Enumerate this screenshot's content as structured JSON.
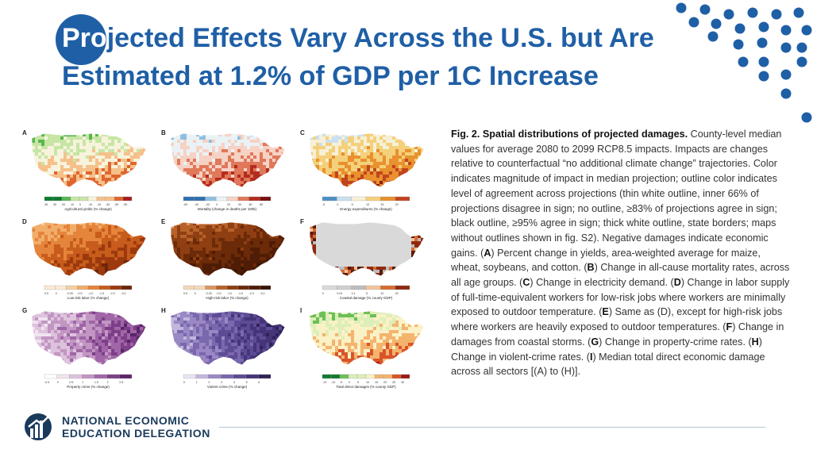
{
  "slide": {
    "title_highlight": "Pro",
    "title_rest": "jected Effects Vary Across the U.S. but Are Estimated at 1.2% of GDP per 1C Increase"
  },
  "figure": {
    "panels": [
      {
        "letter": "A",
        "label": "Agricultural yields (% change)",
        "ticks": [
          "45",
          "30",
          "20",
          "10",
          "0",
          "-10",
          "-20",
          "-30",
          "-50",
          "-90"
        ]
      },
      {
        "letter": "B",
        "label": "Mortality (change in deaths per 100k)",
        "ticks": [
          "-60",
          "-40",
          "-20",
          "0",
          "20",
          "40",
          "60",
          "80"
        ]
      },
      {
        "letter": "C",
        "label": "Energy expenditures (% change)",
        "ticks": [
          "-5",
          "0",
          "5",
          "10",
          "15",
          "20"
        ]
      },
      {
        "letter": "D",
        "label": "Low-risk labor (% change)",
        "ticks": [
          "0.5",
          "0",
          "-0.25",
          "-0.5",
          "-1.0",
          "-1.5",
          "-2.0",
          "-3.0"
        ]
      },
      {
        "letter": "E",
        "label": "High-risk labor (% change)",
        "ticks": [
          "0.5",
          "0",
          "-0.25",
          "-0.5",
          "-1.0",
          "-1.5",
          "-2.0",
          "-3.0"
        ]
      },
      {
        "letter": "F",
        "label": "Coastal damage (% county GDP)",
        "ticks": [
          "0",
          "0.01",
          "0.1",
          "5",
          "10",
          "20"
        ]
      },
      {
        "letter": "G",
        "label": "Property crime (% change)",
        "ticks": [
          "-0.5",
          "0",
          "0.5",
          "1",
          "1.5",
          "2",
          "2.5"
        ]
      },
      {
        "letter": "H",
        "label": "Violent crime (% change)",
        "ticks": [
          "0",
          "1",
          "2",
          "3",
          "4",
          "5",
          "6"
        ]
      },
      {
        "letter": "I",
        "label": "Total direct damages (% county GDP)",
        "ticks": [
          "-13",
          "-10",
          "-5",
          "0",
          "5",
          "10",
          "15",
          "20",
          "25",
          "30"
        ]
      }
    ]
  },
  "caption": {
    "heading": "Fig. 2. Spatial distributions of projected damages.",
    "p1": " County-level median values for average 2080 to  2099 RCP8.5 impacts. Impacts are changes relative to counterfactual “no additional climate change” trajectories. Color indicates magnitude of impact in median projection; outline color indicates level of agreement across projections (thin white outline, inner 66% of projections disagree in sign; no outline, ≥83% of projections agree in sign; black outline, ≥95% agree in sign; thick white outline, state borders; maps without outlines shown in fig. S2). Negative damages indicate economic gains. (",
    "lA": "A",
    "p2": ") Percent change in yields, area-weighted average for maize, wheat, soybeans, and cotton. (",
    "lB": "B",
    "p3": ") Change in all-cause mortality rates, across all age groups. (",
    "lC": "C",
    "p4": ") Change in electricity demand. (",
    "lD": "D",
    "p5": ") Change in labor supply of full-time-equivalent workers for low-risk jobs where workers are minimally exposed to outdoor temperature. (",
    "lE": "E",
    "p6": ") Same as (D), except for high-risk jobs where workers are heavily exposed to outdoor temperatures. (",
    "lF": "F",
    "p7": ") Change in damages from coastal storms. (",
    "lG": "G",
    "p8": ") Change in property-crime rates. (",
    "lH": "H",
    "p9": ") Change in violent-crime rates. (",
    "lI": "I",
    "p10": ") Median total direct economic damage across all sectors [(A) to (H)]."
  },
  "logo": {
    "line1": "NATIONAL ECONOMIC",
    "line2": "EDUCATION DELEGATION"
  },
  "colors": {
    "title": "#1f5fa6",
    "dots": "#1f5fa6"
  }
}
